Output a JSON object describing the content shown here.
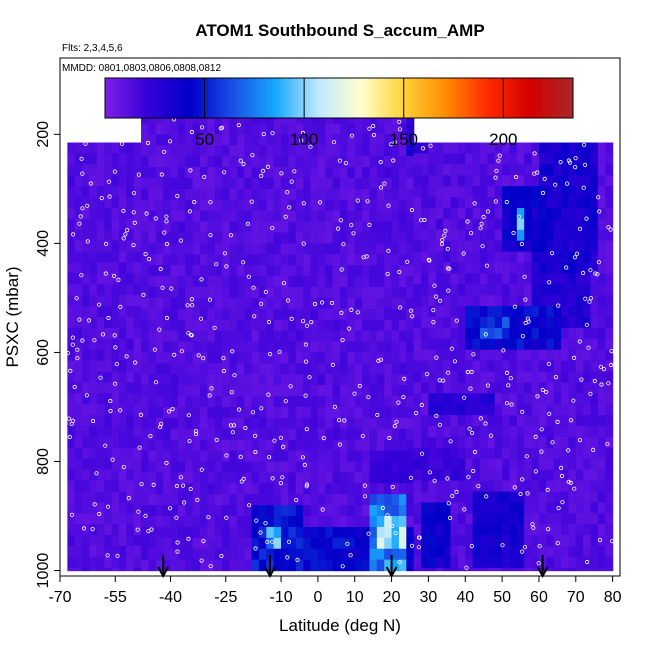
{
  "chart_data": {
    "type": "heatmap",
    "title": "ATOM1 Southbound S_accum_AMP",
    "annotations": [
      "Flts: 2,3,4,5,6",
      "MMDD: 0801,0803,0806,0808,0812"
    ],
    "xlabel": "Latitude (deg N)",
    "ylabel": "PSXC (mbar)",
    "xlim": [
      -70,
      82
    ],
    "ylim": [
      1010,
      60
    ],
    "y_reversed": true,
    "x_ticks": [
      -70,
      -55,
      -40,
      -25,
      -10,
      0,
      10,
      20,
      30,
      40,
      50,
      60,
      70,
      80
    ],
    "x_tick_labels": [
      "-70",
      "-55",
      "-40",
      "-25",
      "-10",
      "0",
      "10",
      "20",
      "30",
      "40",
      "50",
      "60",
      "70",
      "80"
    ],
    "y_ticks": [
      200,
      400,
      600,
      800,
      1000
    ],
    "y_tick_labels": [
      "200",
      "400",
      "600",
      "800",
      "1000"
    ],
    "colorbar": {
      "range": [
        0,
        235
      ],
      "ticks": [
        50,
        100,
        150,
        200
      ],
      "tick_labels": [
        "50",
        "100",
        "150",
        "200"
      ],
      "colors": [
        "#7f1fe8",
        "#3500d8",
        "#0000c8",
        "#1b4fe6",
        "#16a8ff",
        "#bde8ff",
        "#ffffd0",
        "#ffd33a",
        "#ff8c00",
        "#ff2a00",
        "#d40000",
        "#a82828"
      ]
    },
    "grid": false,
    "legend": "none",
    "domain_extent": [
      {
        "lat": -68,
        "top": 215,
        "bottom": 1000
      },
      {
        "lat": -50,
        "top": 215,
        "bottom": 1000
      },
      {
        "lat": -48,
        "top": 160,
        "bottom": 1000
      },
      {
        "lat": 24,
        "top": 160,
        "bottom": 1000
      },
      {
        "lat": 26,
        "top": 215,
        "bottom": 1000
      },
      {
        "lat": 78,
        "top": 215,
        "bottom": 1000
      },
      {
        "lat": 80,
        "top": 260,
        "bottom": 1000
      }
    ],
    "background_value": 8,
    "high_value_regions": [
      {
        "lat": [
          -18,
          -5
        ],
        "p": [
          890,
          1000
        ],
        "value": 50
      },
      {
        "lat": [
          -14,
          -11
        ],
        "p": [
          920,
          960
        ],
        "value": 90
      },
      {
        "lat": [
          -5,
          25
        ],
        "p": [
          920,
          1000
        ],
        "value": 45
      },
      {
        "lat": [
          15,
          24
        ],
        "p": [
          870,
          990
        ],
        "value": 80
      },
      {
        "lat": [
          17,
          23
        ],
        "p": [
          900,
          960
        ],
        "value": 110
      },
      {
        "lat": [
          28,
          36
        ],
        "p": [
          880,
          1000
        ],
        "value": 40
      },
      {
        "lat": [
          42,
          56
        ],
        "p": [
          860,
          1000
        ],
        "value": 35
      },
      {
        "lat": [
          50,
          62
        ],
        "p": [
          300,
          420
        ],
        "value": 40
      },
      {
        "lat": [
          54,
          56
        ],
        "p": [
          330,
          390
        ],
        "value": 95
      },
      {
        "lat": [
          60,
          76
        ],
        "p": [
          220,
          460
        ],
        "value": 35
      },
      {
        "lat": [
          58,
          74
        ],
        "p": [
          420,
          560
        ],
        "value": 30
      },
      {
        "lat": [
          40,
          66
        ],
        "p": [
          520,
          590
        ],
        "value": 45
      },
      {
        "lat": [
          44,
          52
        ],
        "p": [
          530,
          580
        ],
        "value": 60
      },
      {
        "lat": [
          30,
          48
        ],
        "p": [
          680,
          720
        ],
        "value": 28
      },
      {
        "lat": [
          24,
          30
        ],
        "p": [
          170,
          230
        ],
        "value": 30
      },
      {
        "lat": [
          14,
          40
        ],
        "p": [
          780,
          840
        ],
        "value": 22
      }
    ],
    "arrows_lat": [
      -42,
      -13,
      20,
      61
    ],
    "point_color": "#ffffff"
  }
}
